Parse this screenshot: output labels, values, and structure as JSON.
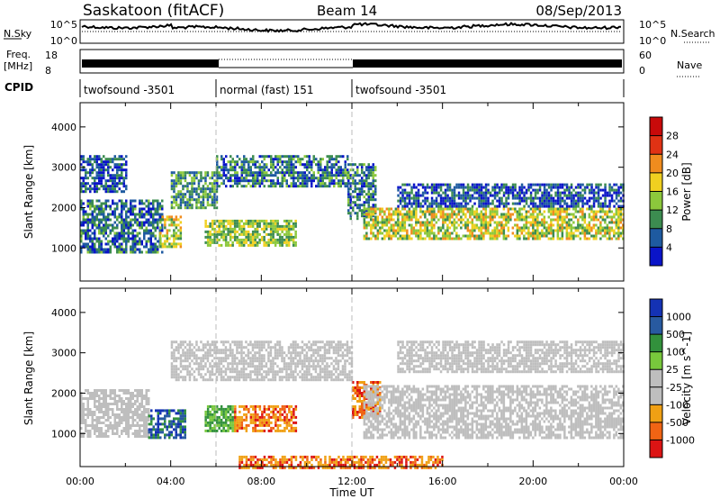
{
  "header": {
    "station": "Saskatoon (fitACF)",
    "beam": "Beam 14",
    "date": "08/Sep/2013"
  },
  "noise_panel": {
    "left_label": "N.Sky",
    "right_label": "N.Search",
    "left_ticks": [
      "10^5",
      "10^0"
    ],
    "right_ticks": [
      "10^5",
      "10^0"
    ]
  },
  "freq_panel": {
    "left_label_top": "Freq.",
    "left_label_bottom": "[MHz]",
    "right_label": "Nave",
    "left_ticks": [
      "18",
      "8"
    ],
    "right_ticks": [
      "60",
      "0"
    ]
  },
  "cpid_panel": {
    "label": "CPID",
    "segments": [
      {
        "name": "twofsound -3501",
        "start_hour": 0,
        "end_hour": 6
      },
      {
        "name": "normal (fast) 151",
        "start_hour": 6,
        "end_hour": 12
      },
      {
        "name": "twofsound -3501",
        "start_hour": 12,
        "end_hour": 24
      }
    ]
  },
  "chart_data": [
    {
      "type": "heatmap",
      "title": "",
      "xlabel": "Time UT",
      "ylabel": "Slant Range [km]",
      "xlim": [
        0,
        24
      ],
      "ylim": [
        180,
        4600
      ],
      "yticks": [
        1000,
        2000,
        3000,
        4000
      ],
      "quantity": "Power",
      "colorbar": {
        "label": "Power [dB]",
        "ticks": [
          "4",
          "8",
          "12",
          "16",
          "20",
          "24",
          "28"
        ],
        "range": [
          0,
          32
        ],
        "colors": [
          "#0a14c8",
          "#1e5aa0",
          "#3c8c50",
          "#8cc83c",
          "#f0d020",
          "#f08c1e",
          "#e03214",
          "#c80a0a"
        ]
      },
      "echo_regions": [
        {
          "t0": 0.0,
          "t1": 3.6,
          "r0": 900,
          "r1": 2200,
          "level": 9
        },
        {
          "t0": 3.5,
          "t1": 4.4,
          "r0": 1000,
          "r1": 1800,
          "level": 18
        },
        {
          "t0": 4.0,
          "t1": 6.0,
          "r0": 2000,
          "r1": 2900,
          "level": 12
        },
        {
          "t0": 5.5,
          "t1": 9.5,
          "r0": 1050,
          "r1": 1700,
          "level": 16
        },
        {
          "t0": 6.0,
          "t1": 11.8,
          "r0": 2500,
          "r1": 3300,
          "level": 10
        },
        {
          "t0": 11.8,
          "t1": 13.0,
          "r0": 1700,
          "r1": 3100,
          "level": 10
        },
        {
          "t0": 12.5,
          "t1": 24.0,
          "r0": 1200,
          "r1": 2000,
          "level": 18
        },
        {
          "t0": 14.0,
          "t1": 24.0,
          "r0": 2000,
          "r1": 2600,
          "level": 7
        },
        {
          "t0": 0.0,
          "t1": 2.0,
          "r0": 2400,
          "r1": 3300,
          "level": 7
        }
      ]
    },
    {
      "type": "heatmap",
      "title": "",
      "xlabel": "Time UT",
      "ylabel": "Slant Range [km]",
      "xlim": [
        0,
        24
      ],
      "ylim": [
        180,
        4600
      ],
      "yticks": [
        1000,
        2000,
        3000,
        4000
      ],
      "xticks": [
        "00:00",
        "04:00",
        "08:00",
        "12:00",
        "16:00",
        "20:00",
        "00:00"
      ],
      "quantity": "Velocity",
      "colorbar": {
        "label": "Velocity [m s^-1]",
        "ticks": [
          "1000",
          "500",
          "100",
          "25",
          "-25",
          "-100",
          "-500",
          "-1000"
        ],
        "colors": [
          "#1432b4",
          "#285aa0",
          "#32913c",
          "#78c83c",
          "#bebebe",
          "#bebebe",
          "#f0a014",
          "#f06414",
          "#dc1414"
        ]
      },
      "echo_regions": [
        {
          "t0": 0.0,
          "t1": 3.0,
          "r0": 900,
          "r1": 2100,
          "level": "grey"
        },
        {
          "t0": 3.0,
          "t1": 4.6,
          "r0": 900,
          "r1": 1600,
          "level": "blue"
        },
        {
          "t0": 5.5,
          "t1": 6.8,
          "r0": 1050,
          "r1": 1700,
          "level": "green"
        },
        {
          "t0": 6.8,
          "t1": 9.5,
          "r0": 1050,
          "r1": 1700,
          "level": "orange"
        },
        {
          "t0": 4.0,
          "t1": 12.0,
          "r0": 2300,
          "r1": 3300,
          "level": "grey"
        },
        {
          "t0": 12.0,
          "t1": 13.2,
          "r0": 1400,
          "r1": 2300,
          "level": "orange"
        },
        {
          "t0": 12.5,
          "t1": 24.0,
          "r0": 900,
          "r1": 2200,
          "level": "grey"
        },
        {
          "t0": 14.0,
          "t1": 24.0,
          "r0": 2500,
          "r1": 3300,
          "level": "grey"
        },
        {
          "t0": 7.0,
          "t1": 16.0,
          "r0": 180,
          "r1": 450,
          "level": "orange"
        }
      ]
    }
  ]
}
